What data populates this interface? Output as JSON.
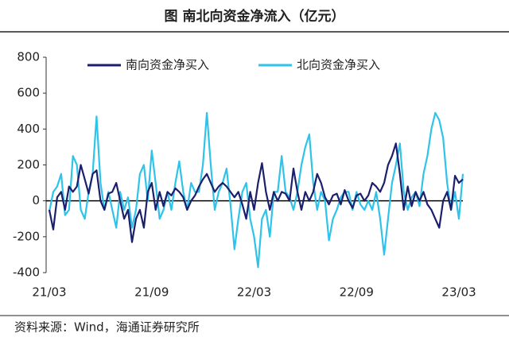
{
  "chart_data": {
    "type": "line",
    "title": "图  南北向资金净流入（亿元）",
    "source": "资料来源：Wind，海通证券研究所",
    "categories": [
      "21/03",
      null,
      null,
      null,
      null,
      null,
      null,
      null,
      null,
      null,
      null,
      null,
      null,
      null,
      null,
      null,
      null,
      null,
      null,
      null,
      null,
      null,
      null,
      null,
      null,
      null,
      "21/09",
      null,
      null,
      null,
      null,
      null,
      null,
      null,
      null,
      null,
      null,
      null,
      null,
      null,
      null,
      null,
      null,
      null,
      null,
      null,
      null,
      null,
      null,
      null,
      null,
      null,
      "22/03",
      null,
      null,
      null,
      null,
      null,
      null,
      null,
      null,
      null,
      null,
      null,
      null,
      null,
      null,
      null,
      null,
      null,
      null,
      null,
      null,
      null,
      null,
      null,
      null,
      null,
      "22/09",
      null,
      null,
      null,
      null,
      null,
      null,
      null,
      null,
      null,
      null,
      null,
      null,
      null,
      null,
      null,
      null,
      null,
      null,
      null,
      null,
      null,
      null,
      null,
      null,
      null,
      "23/03",
      null
    ],
    "series": [
      {
        "name": "南向资金净买入",
        "color": "#1c1f6b",
        "values": [
          -50,
          -160,
          20,
          50,
          -50,
          80,
          50,
          80,
          200,
          120,
          40,
          150,
          170,
          0,
          -50,
          40,
          50,
          100,
          0,
          -100,
          -50,
          -230,
          -100,
          -50,
          -150,
          50,
          100,
          -50,
          50,
          -30,
          50,
          30,
          70,
          50,
          20,
          -50,
          0,
          30,
          80,
          120,
          150,
          100,
          50,
          80,
          100,
          80,
          50,
          20,
          50,
          -20,
          -100,
          50,
          -50,
          100,
          210,
          50,
          -50,
          50,
          0,
          50,
          40,
          0,
          180,
          50,
          -50,
          50,
          0,
          50,
          150,
          100,
          20,
          -20,
          30,
          40,
          -20,
          60,
          0,
          -40,
          30,
          40,
          0,
          30,
          100,
          80,
          50,
          100,
          200,
          250,
          320,
          150,
          -50,
          80,
          -30,
          50,
          0,
          50,
          -20,
          -50,
          -100,
          -150,
          0,
          50,
          -50,
          140,
          100,
          120
        ]
      },
      {
        "name": "北向资金净买入",
        "color": "#2ec4ea",
        "values": [
          -60,
          50,
          80,
          150,
          -80,
          -50,
          250,
          200,
          -50,
          -100,
          50,
          150,
          470,
          100,
          -50,
          50,
          -50,
          -150,
          50,
          -50,
          20,
          -150,
          -50,
          150,
          200,
          0,
          280,
          100,
          -100,
          -50,
          50,
          -50,
          100,
          220,
          50,
          -50,
          100,
          50,
          50,
          200,
          490,
          200,
          -50,
          50,
          100,
          180,
          -20,
          -270,
          -100,
          50,
          100,
          -100,
          -200,
          -370,
          -100,
          -50,
          -200,
          50,
          50,
          250,
          50,
          20,
          -50,
          50,
          200,
          300,
          370,
          100,
          -50,
          50,
          0,
          -220,
          -100,
          -50,
          20,
          50,
          50,
          -50,
          50,
          -20,
          -50,
          0,
          -50,
          50,
          -100,
          -300,
          -100,
          100,
          200,
          320,
          50,
          -50,
          20,
          50,
          -30,
          150,
          250,
          400,
          490,
          450,
          350,
          100,
          -50,
          50,
          -100,
          150
        ]
      }
    ],
    "ylim": [
      -400,
      800
    ],
    "yticks": [
      -400,
      -200,
      0,
      200,
      400,
      600,
      800
    ]
  }
}
